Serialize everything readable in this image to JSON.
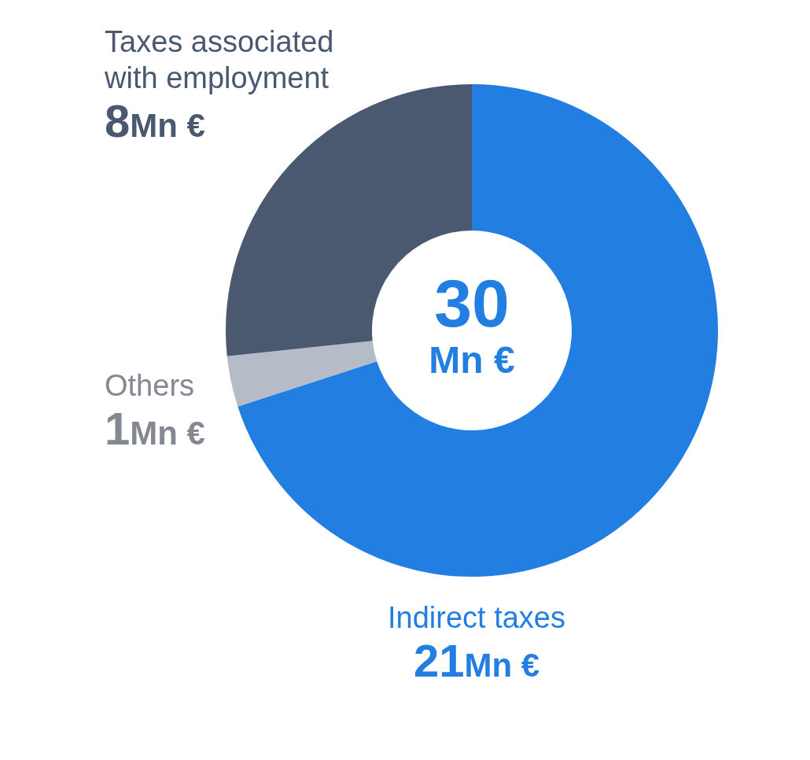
{
  "chart_data": {
    "type": "donut",
    "categories": [
      "Indirect taxes",
      "Others",
      "Taxes associated with employment"
    ],
    "values": [
      21,
      1,
      8
    ],
    "colors": [
      "#237ee1",
      "#b5bcc8",
      "#4a5870"
    ],
    "value_labels": [
      "21Mn €",
      "1Mn €",
      "8Mn €"
    ],
    "annotations": [
      "30",
      "Mn €"
    ]
  }
}
